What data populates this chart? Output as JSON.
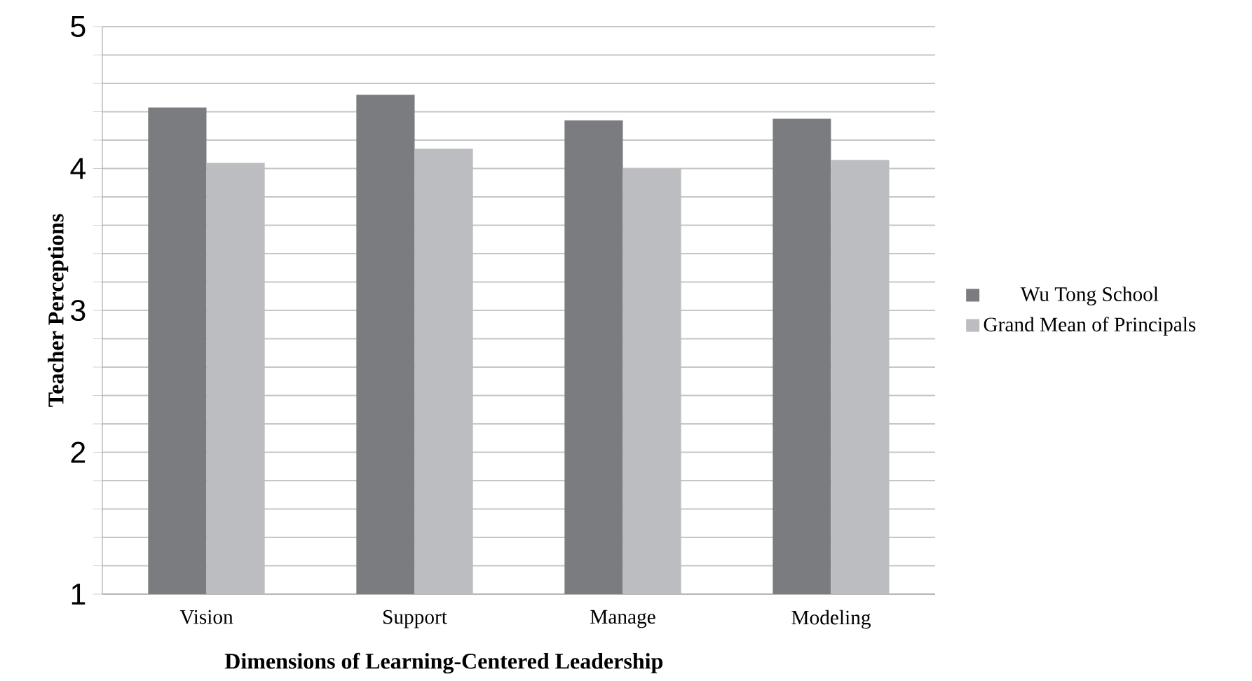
{
  "chart_data": {
    "type": "bar",
    "xlabel": "Dimensions of Learning-Centered Leadership",
    "ylabel": "Teacher Perceptions",
    "categories": [
      "Vision",
      "Support",
      "Manage",
      "Modeling"
    ],
    "series": [
      {
        "name": "Wu Tong School",
        "color": "#7b7c80",
        "values": [
          4.43,
          4.52,
          4.34,
          4.35
        ]
      },
      {
        "name": "Grand Mean of Principals",
        "color": "#bcbdc1",
        "values": [
          4.04,
          4.14,
          4.0,
          4.06
        ]
      }
    ],
    "ylim": [
      1,
      5
    ],
    "yticks": [
      1,
      {
        "value": 1.2,
        "label": null
      },
      {
        "value": 1.4,
        "label": null
      },
      {
        "value": 1.6,
        "label": null
      },
      {
        "value": 1.8,
        "label": null
      },
      2,
      {
        "value": 2.2,
        "label": null
      },
      {
        "value": 2.4,
        "label": null
      },
      {
        "value": 2.6,
        "label": null
      },
      {
        "value": 2.8,
        "label": null
      },
      3,
      {
        "value": 3.2,
        "label": null
      },
      {
        "value": 3.4,
        "label": null
      },
      {
        "value": 3.6,
        "label": null
      },
      {
        "value": 3.8,
        "label": null
      },
      4,
      {
        "value": 4.2,
        "label": null
      },
      {
        "value": 4.4,
        "label": null
      },
      {
        "value": 4.6,
        "label": null
      },
      {
        "value": 4.8,
        "label": null
      },
      5
    ],
    "grid": "y",
    "legend": "right"
  }
}
